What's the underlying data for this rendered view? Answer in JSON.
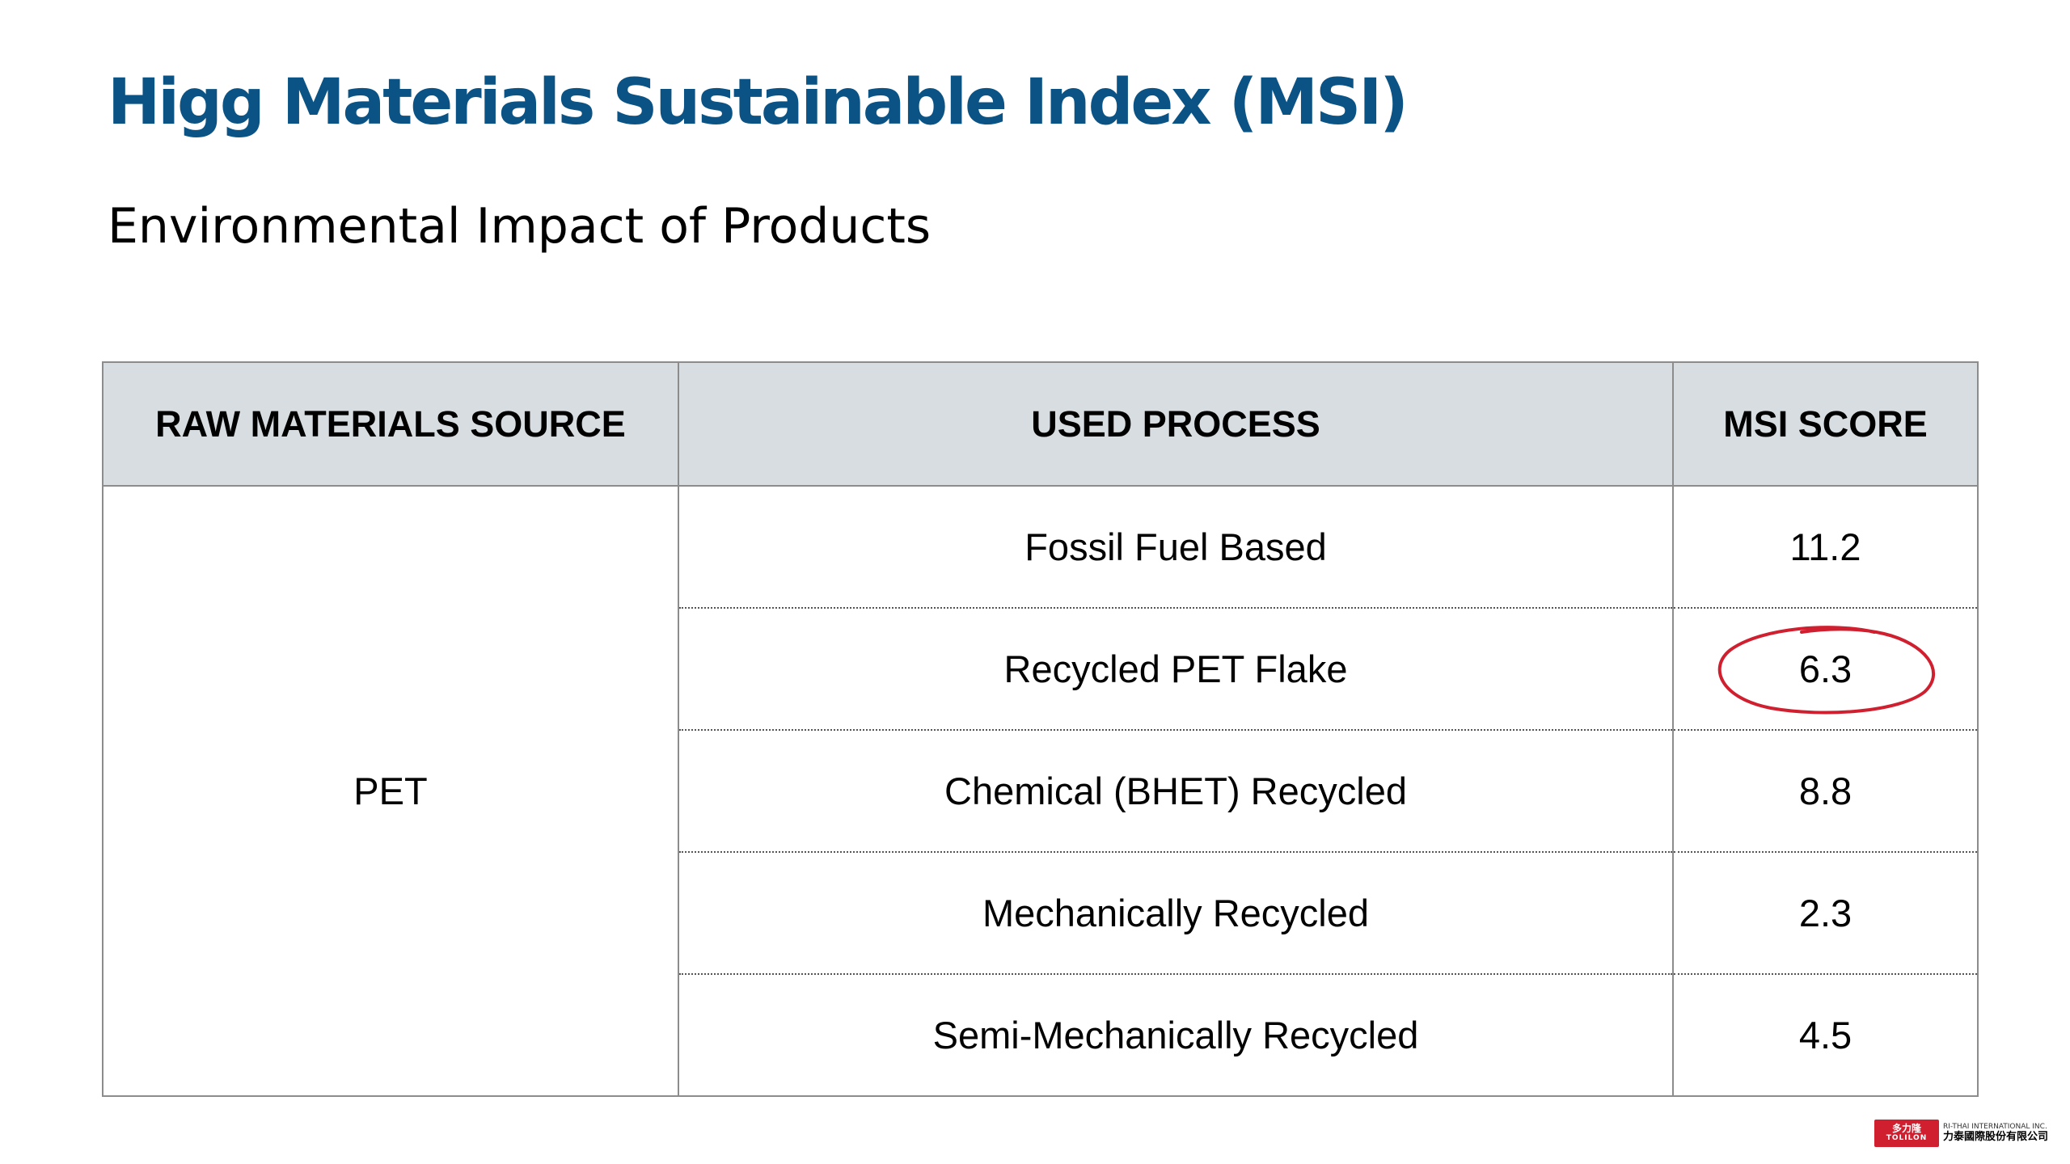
{
  "header": {
    "title": "Higg Materials Sustainable Index (MSI)",
    "subtitle": "Environmental Impact of Products"
  },
  "table": {
    "columns": [
      "RAW MATERIALS SOURCE",
      "USED PROCESS",
      "MSI SCORE"
    ],
    "source": "PET",
    "rows": [
      {
        "process": "Fossil Fuel Based",
        "score": "11.2"
      },
      {
        "process": "Recycled PET Flake",
        "score": "6.3",
        "circled": true
      },
      {
        "process": "Chemical (BHET) Recycled",
        "score": "8.8"
      },
      {
        "process": "Mechanically Recycled",
        "score": "2.3"
      },
      {
        "process": "Semi-Mechanically Recycled",
        "score": "4.5"
      }
    ]
  },
  "annotation": {
    "type": "hand-drawn circle around score",
    "color": "#d0202f"
  },
  "logo": {
    "mark_cn": "多力隆",
    "mark_en": "TOLILON",
    "company_en": "RI-THAI INTERNATIONAL INC.",
    "company_cn": "力泰國際股份有限公司"
  },
  "colors": {
    "title": "#0b5384",
    "header_bg": "#d8dde1",
    "logo_red": "#d0202f"
  }
}
